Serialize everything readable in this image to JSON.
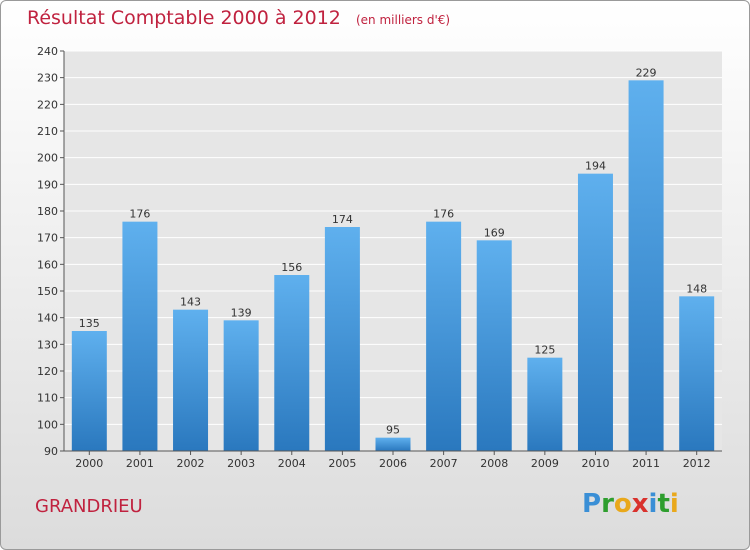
{
  "header": {
    "title": "Résultat Comptable 2000 à 2012",
    "subtitle": "(en milliers d'€)"
  },
  "footer": {
    "commune": "GRANDRIEU",
    "logo": [
      "P",
      "r",
      "o",
      "x",
      "i",
      "t",
      "i"
    ],
    "logo_colors": [
      "#3a8fd6",
      "#2e9e2e",
      "#e9a81b",
      "#d9322d",
      "#3a8fd6",
      "#2e9e2e",
      "#e9a81b"
    ]
  },
  "colors": {
    "bar_top": "#5fb0ee",
    "bar_bottom": "#2a78be",
    "title": "#c0223f"
  },
  "chart_data": {
    "type": "bar",
    "title": "Résultat Comptable 2000 à 2012",
    "subtitle": "(en milliers d'€)",
    "categories": [
      "2000",
      "2001",
      "2002",
      "2003",
      "2004",
      "2005",
      "2006",
      "2007",
      "2008",
      "2009",
      "2010",
      "2011",
      "2012"
    ],
    "values": [
      135,
      176,
      143,
      139,
      156,
      174,
      95,
      176,
      169,
      125,
      194,
      229,
      148
    ],
    "ylim": [
      90,
      240
    ],
    "yticks": [
      90,
      100,
      110,
      120,
      130,
      140,
      150,
      160,
      170,
      180,
      190,
      200,
      210,
      220,
      230,
      240
    ],
    "grid": true,
    "data_labels": true
  }
}
